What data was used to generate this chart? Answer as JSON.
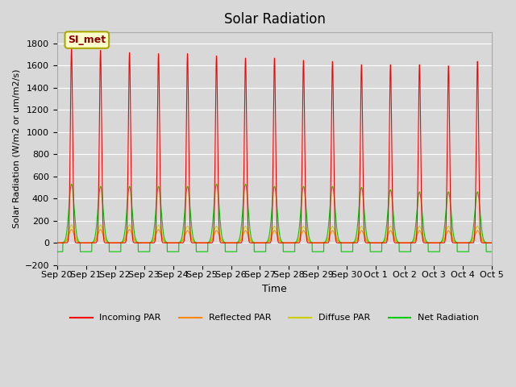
{
  "title": "Solar Radiation",
  "ylabel": "Solar Radiation (W/m2 or um/m2/s)",
  "xlabel": "Time",
  "ylim": [
    -200,
    1900
  ],
  "yticks": [
    -200,
    0,
    200,
    400,
    600,
    800,
    1000,
    1200,
    1400,
    1600,
    1800
  ],
  "bg_color": "#d8d8d8",
  "grid_color": "#ffffff",
  "annotation_text": "SI_met",
  "annotation_bg": "#ffffcc",
  "annotation_border": "#aaa800",
  "annotation_text_color": "#8b0000",
  "colors": {
    "incoming": "#ff0000",
    "reflected": "#ff8800",
    "diffuse": "#cccc00",
    "net": "#00cc00"
  },
  "legend_labels": [
    "Incoming PAR",
    "Reflected PAR",
    "Diffuse PAR",
    "Net Radiation"
  ],
  "x_tick_labels": [
    "Sep 20",
    "Sep 21",
    "Sep 22",
    "Sep 23",
    "Sep 24",
    "Sep 25",
    "Sep 26",
    "Sep 27",
    "Sep 28",
    "Sep 29",
    "Sep 30",
    "Oct 1",
    "Oct 2",
    "Oct 3",
    "Oct 4",
    "Oct 5"
  ],
  "n_days": 15,
  "incoming_peaks": [
    1750,
    1740,
    1720,
    1710,
    1710,
    1690,
    1670,
    1670,
    1650,
    1640,
    1610,
    1610,
    1610,
    1600,
    1640
  ],
  "net_peaks": [
    530,
    510,
    510,
    510,
    510,
    530,
    530,
    510,
    510,
    510,
    500,
    480,
    460,
    460,
    460
  ],
  "reflected_peaks": [
    120,
    120,
    120,
    120,
    110,
    110,
    110,
    110,
    110,
    110,
    110,
    110,
    110,
    110,
    110
  ],
  "diffuse_peaks": [
    160,
    160,
    160,
    160,
    150,
    150,
    150,
    150,
    150,
    150,
    150,
    150,
    150,
    150,
    150
  ],
  "net_night": -80,
  "samples_per_day": 200
}
